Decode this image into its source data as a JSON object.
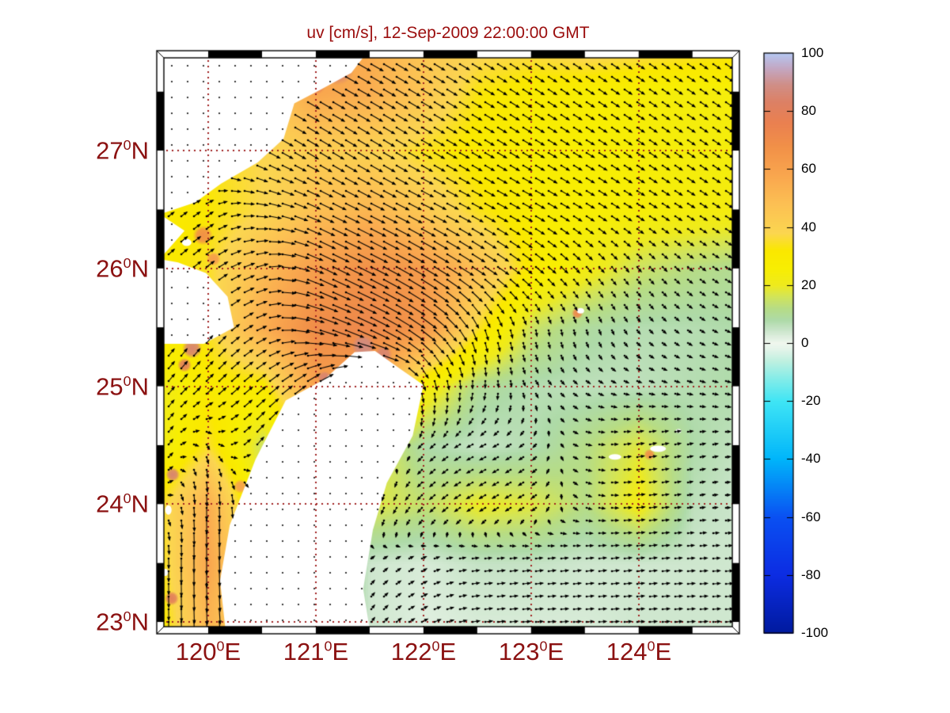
{
  "title": {
    "text": "uv [cm/s], 12-Sep-2009 22:00:00 GMT",
    "color": "#9b0d0d"
  },
  "axis_style": {
    "label_color": "#8b1111",
    "font_size_px": 31
  },
  "chart_data": {
    "type": "heatmap",
    "overlay": "quiver-vector-field",
    "title": "uv [cm/s], 12-Sep-2009 22:00:00 GMT",
    "units": "cm/s",
    "xlabel": "",
    "ylabel": "",
    "xlim": [
      119.588,
      124.87
    ],
    "ylim": [
      22.96,
      27.787
    ],
    "x_ticks": [
      {
        "value": 120,
        "label": "120",
        "sup": "0",
        "dir": "E"
      },
      {
        "value": 121,
        "label": "121",
        "sup": "0",
        "dir": "E"
      },
      {
        "value": 122,
        "label": "122",
        "sup": "0",
        "dir": "E"
      },
      {
        "value": 123,
        "label": "123",
        "sup": "0",
        "dir": "E"
      },
      {
        "value": 124,
        "label": "124",
        "sup": "0",
        "dir": "E"
      }
    ],
    "y_ticks": [
      {
        "value": 27,
        "label": "27",
        "sup": "0",
        "dir": "N"
      },
      {
        "value": 26,
        "label": "26",
        "sup": "0",
        "dir": "N"
      },
      {
        "value": 25,
        "label": "25",
        "sup": "0",
        "dir": "N"
      },
      {
        "value": 24,
        "label": "24",
        "sup": "0",
        "dir": "N"
      },
      {
        "value": 23,
        "label": "23",
        "sup": "0",
        "dir": "N"
      }
    ],
    "grid_lines": {
      "lons": [
        120,
        121,
        122,
        123,
        124
      ],
      "lats": [
        23,
        24,
        25,
        26,
        27
      ],
      "style": "dotted",
      "color": "#a02020"
    },
    "frame": {
      "style": "zebra",
      "interval_deg": 0.5,
      "colors": [
        "#000000",
        "#ffffff"
      ]
    },
    "colorbar": {
      "position": "right",
      "range": [
        -100,
        100
      ],
      "ticks": [
        {
          "value": 100,
          "label": "100"
        },
        {
          "value": 80,
          "label": "80"
        },
        {
          "value": 60,
          "label": "60"
        },
        {
          "value": 40,
          "label": "40"
        },
        {
          "value": 20,
          "label": "20"
        },
        {
          "value": 0,
          "label": "0"
        },
        {
          "value": -20,
          "label": "-20"
        },
        {
          "value": -40,
          "label": "-40"
        },
        {
          "value": -60,
          "label": "-60"
        },
        {
          "value": -80,
          "label": "-80"
        },
        {
          "value": -100,
          "label": "-100"
        }
      ],
      "colormap": [
        [
          -100,
          "#001a9e"
        ],
        [
          -80,
          "#0c2ce2"
        ],
        [
          -60,
          "#0a50f2"
        ],
        [
          -40,
          "#00b5fa"
        ],
        [
          -20,
          "#3fe5f5"
        ],
        [
          -12,
          "#86ece8"
        ],
        [
          -6,
          "#c0f0e0"
        ],
        [
          -2,
          "#e4f4ea"
        ],
        [
          0,
          "#f0f7ee"
        ],
        [
          2,
          "#e0efe0"
        ],
        [
          5,
          "#c6e3c6"
        ],
        [
          8,
          "#aedaa8"
        ],
        [
          12,
          "#b6dc86"
        ],
        [
          16,
          "#d2e45a"
        ],
        [
          20,
          "#eeea1e"
        ],
        [
          26,
          "#f8ee02"
        ],
        [
          32,
          "#fae800"
        ],
        [
          38,
          "#fbd650"
        ],
        [
          48,
          "#fcc053"
        ],
        [
          58,
          "#f9a64e"
        ],
        [
          68,
          "#f19048"
        ],
        [
          76,
          "#ea8050"
        ],
        [
          83,
          "#dd8064"
        ],
        [
          89,
          "#d08e86"
        ],
        [
          95,
          "#c3a8c4"
        ],
        [
          100,
          "#b5c7f2"
        ]
      ]
    },
    "field_grid": {
      "note": "coarse estimate of plotted field; rows ordered north to south",
      "lons": [
        119.5,
        120,
        120.5,
        121,
        121.5,
        122,
        122.5,
        123,
        123.5,
        124,
        124.5,
        125
      ],
      "lats_desc": [
        27.79,
        27.5,
        27.0,
        26.5,
        26.0,
        25.5,
        25.0,
        24.5,
        24.0,
        23.5,
        23.0
      ],
      "color_values": [
        [
          36,
          40,
          48,
          60,
          55,
          45,
          38,
          36,
          38,
          36,
          34,
          32
        ],
        [
          35,
          38,
          45,
          58,
          55,
          45,
          33,
          29,
          27,
          25,
          24,
          24
        ],
        [
          32,
          34,
          38,
          42,
          40,
          34,
          30,
          27,
          26,
          25,
          24,
          24
        ],
        [
          30,
          32,
          38,
          48,
          52,
          44,
          34,
          28,
          26,
          25,
          24,
          23
        ],
        [
          30,
          35,
          50,
          62,
          68,
          62,
          48,
          30,
          22,
          15,
          12,
          10
        ],
        [
          30,
          35,
          55,
          70,
          72,
          65,
          35,
          15,
          9,
          7,
          7,
          8
        ],
        [
          20,
          30,
          30,
          60,
          60,
          25,
          10,
          7,
          6,
          6,
          7,
          8
        ],
        [
          20,
          35,
          15,
          35,
          20,
          8,
          5,
          7,
          12,
          18,
          8,
          5
        ],
        [
          32,
          55,
          18,
          18,
          18,
          14,
          20,
          18,
          12,
          22,
          6,
          4
        ],
        [
          30,
          58,
          28,
          25,
          4,
          3,
          5,
          5,
          4,
          4,
          4,
          4
        ],
        [
          28,
          52,
          35,
          20,
          4,
          2,
          3,
          3,
          3,
          4,
          4,
          4
        ]
      ],
      "u": [
        [
          20,
          25,
          30,
          35,
          35,
          30,
          25,
          22,
          20,
          18,
          18,
          18
        ],
        [
          20,
          25,
          30,
          35,
          35,
          30,
          25,
          22,
          20,
          18,
          18,
          18
        ],
        [
          15,
          20,
          28,
          30,
          30,
          28,
          24,
          22,
          20,
          18,
          18,
          18
        ],
        [
          10,
          15,
          30,
          38,
          40,
          35,
          28,
          24,
          20,
          18,
          16,
          16
        ],
        [
          12,
          20,
          30,
          52,
          55,
          50,
          38,
          22,
          12,
          8,
          10,
          12
        ],
        [
          12,
          15,
          25,
          55,
          60,
          45,
          10,
          2,
          2,
          4,
          6,
          8
        ],
        [
          15,
          18,
          25,
          35,
          40,
          5,
          -2,
          4,
          5,
          6,
          7,
          8
        ],
        [
          10,
          5,
          18,
          25,
          20,
          -8,
          -12,
          -5,
          8,
          15,
          8,
          5
        ],
        [
          6,
          0,
          5,
          5,
          -5,
          -10,
          -14,
          -10,
          8,
          18,
          6,
          4
        ],
        [
          0,
          0,
          5,
          8,
          4,
          8,
          15,
          16,
          16,
          16,
          15,
          15
        ],
        [
          0,
          2,
          8,
          10,
          6,
          12,
          16,
          16,
          16,
          16,
          16,
          16
        ]
      ],
      "v": [
        [
          -12,
          -15,
          -18,
          -20,
          -20,
          -18,
          -15,
          -14,
          -13,
          -12,
          -12,
          -12
        ],
        [
          -12,
          -15,
          -18,
          -20,
          -20,
          -18,
          -15,
          -14,
          -13,
          -12,
          -12,
          -12
        ],
        [
          -8,
          -12,
          -15,
          -18,
          -18,
          -16,
          -14,
          -13,
          -12,
          -12,
          -12,
          -12
        ],
        [
          8,
          10,
          -5,
          -18,
          -20,
          -18,
          -15,
          -13,
          -12,
          -11,
          -10,
          -10
        ],
        [
          12,
          15,
          8,
          -25,
          -28,
          -30,
          -25,
          -18,
          -14,
          -10,
          -8,
          -6
        ],
        [
          15,
          20,
          10,
          -18,
          -30,
          -35,
          -30,
          -12,
          -8,
          -5,
          -4,
          -3
        ],
        [
          18,
          18,
          20,
          25,
          10,
          -25,
          -15,
          -6,
          -3,
          -2,
          -2,
          -2
        ],
        [
          18,
          -10,
          22,
          25,
          15,
          -8,
          -6,
          -4,
          -2,
          3,
          2,
          0
        ],
        [
          10,
          -35,
          -15,
          -25,
          -15,
          -10,
          -8,
          -6,
          -3,
          2,
          1,
          0
        ],
        [
          -20,
          -52,
          -25,
          -20,
          4,
          4,
          2,
          2,
          2,
          2,
          1,
          1
        ],
        [
          -25,
          -48,
          -30,
          -15,
          8,
          6,
          2,
          1,
          1,
          1,
          1,
          1
        ]
      ]
    },
    "hotspots": [
      {
        "lon": 121.2,
        "lat": 27.7,
        "r": 12,
        "v": 85
      },
      {
        "lon": 121.0,
        "lat": 27.56,
        "r": 7,
        "v": 78
      },
      {
        "lon": 119.95,
        "lat": 26.28,
        "r": 7,
        "v": 68
      },
      {
        "lon": 120.05,
        "lat": 26.08,
        "r": 5,
        "v": 62
      },
      {
        "lon": 119.85,
        "lat": 25.32,
        "r": 7,
        "v": 85
      },
      {
        "lon": 119.78,
        "lat": 25.18,
        "r": 5,
        "v": 80
      },
      {
        "lon": 121.44,
        "lat": 25.34,
        "r": 8,
        "v": 88
      },
      {
        "lon": 121.63,
        "lat": 25.27,
        "r": 6,
        "v": 85
      },
      {
        "lon": 121.08,
        "lat": 25.07,
        "r": 5,
        "v": 85
      },
      {
        "lon": 119.67,
        "lat": 24.25,
        "r": 5,
        "v": 85
      },
      {
        "lon": 119.66,
        "lat": 23.2,
        "r": 5,
        "v": 80
      },
      {
        "lon": 123.43,
        "lat": 25.62,
        "r": 4,
        "v": 72
      },
      {
        "lon": 124.1,
        "lat": 24.42,
        "r": 4,
        "v": 68
      },
      {
        "lon": 120.35,
        "lat": 23.9,
        "r": 6,
        "v": 62
      },
      {
        "lon": 120.3,
        "lat": 24.15,
        "r": 5,
        "v": 60
      }
    ],
    "land": {
      "color": "#ffffff",
      "dot_color": "#3a3a3a",
      "mainland_china": [
        [
          119.588,
          25.36
        ],
        [
          119.96,
          25.36
        ],
        [
          120.24,
          25.5
        ],
        [
          120.18,
          25.76
        ],
        [
          119.98,
          25.96
        ],
        [
          119.72,
          26.05
        ],
        [
          119.55,
          26.08
        ],
        [
          119.78,
          26.32
        ],
        [
          119.55,
          26.46
        ],
        [
          119.88,
          26.56
        ],
        [
          120.12,
          26.72
        ],
        [
          120.46,
          26.9
        ],
        [
          120.7,
          27.1
        ],
        [
          120.8,
          27.4
        ],
        [
          121.05,
          27.52
        ],
        [
          121.33,
          27.66
        ],
        [
          121.44,
          27.79
        ],
        [
          119.5,
          27.79
        ]
      ],
      "taiwan": [
        [
          121.55,
          25.3
        ],
        [
          121.78,
          25.15
        ],
        [
          122.0,
          25.01
        ],
        [
          121.9,
          24.58
        ],
        [
          121.66,
          24.18
        ],
        [
          121.53,
          23.78
        ],
        [
          121.44,
          23.28
        ],
        [
          121.5,
          22.94
        ],
        [
          120.16,
          22.94
        ],
        [
          120.11,
          23.35
        ],
        [
          120.2,
          23.82
        ],
        [
          120.44,
          24.38
        ],
        [
          120.72,
          24.88
        ],
        [
          121.08,
          25.06
        ],
        [
          121.36,
          25.29
        ]
      ],
      "islands": [
        {
          "lon": 123.46,
          "lat": 25.64,
          "w": 9,
          "h": 7
        },
        {
          "lon": 123.78,
          "lat": 24.4,
          "w": 16,
          "h": 7
        },
        {
          "lon": 124.18,
          "lat": 24.47,
          "w": 20,
          "h": 8
        },
        {
          "lon": 124.37,
          "lat": 24.62,
          "w": 7,
          "h": 5
        },
        {
          "lon": 119.63,
          "lat": 23.95,
          "w": 8,
          "h": 12
        },
        {
          "lon": 119.6,
          "lat": 23.42,
          "w": 7,
          "h": 9
        },
        {
          "lon": 119.8,
          "lat": 26.22,
          "w": 12,
          "h": 9
        }
      ]
    },
    "quiver_style": {
      "color": "#000000",
      "spacing_px": 16,
      "len_base": 3.5,
      "len_per_unit": 0.33,
      "max_mag": 85
    }
  }
}
